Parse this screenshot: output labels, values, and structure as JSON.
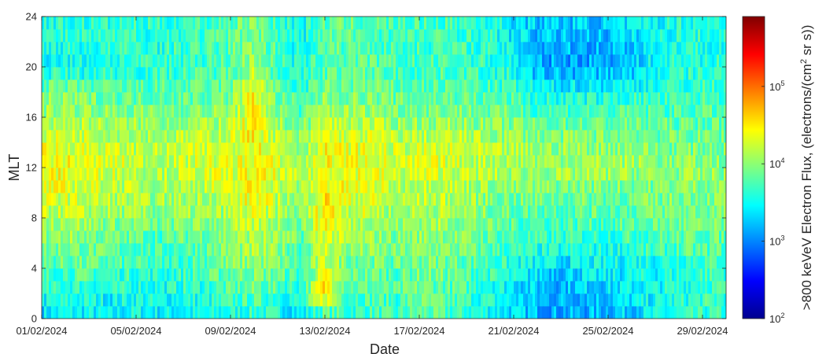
{
  "chart_data": {
    "type": "heatmap",
    "title": "",
    "xlabel": "Date",
    "ylabel": "MLT",
    "colorbar_label_prefix": ">800 keVeV Electron Flux, (electrons/(cm",
    "colorbar_label_sup": "2",
    "colorbar_label_suffix": " sr s))",
    "colorbar_label": ">800 keVeV Electron Flux, (electrons/(cm2 sr s))",
    "colormap": "jet",
    "color_scale": "log",
    "clim": [
      100,
      800000
    ],
    "x_range": [
      "01/02/2024",
      "01/03/2024"
    ],
    "ylim": [
      0,
      24
    ],
    "xticks": [
      "01/02/2024",
      "05/02/2024",
      "09/02/2024",
      "13/02/2024",
      "17/02/2024",
      "21/02/2024",
      "25/02/2024",
      "29/02/2024"
    ],
    "yticks": [
      "0",
      "4",
      "8",
      "12",
      "16",
      "20",
      "24"
    ],
    "cbar_ticks": [
      {
        "base": "10",
        "exp": "2",
        "value": 100
      },
      {
        "base": "10",
        "exp": "3",
        "value": 1000
      },
      {
        "base": "10",
        "exp": "4",
        "value": 10000
      },
      {
        "base": "10",
        "exp": "5",
        "value": 100000
      }
    ],
    "mlt_bins": 24,
    "log10_flux_by_mlt_hour": {
      "0": [
        3.3,
        3.4,
        3.4,
        3.3,
        3.5,
        3.4,
        3.4,
        3.4,
        3.5,
        3.6,
        3.5,
        3.3,
        3.5,
        3.6,
        3.7,
        3.6,
        3.8,
        3.7,
        3.6,
        3.5,
        3.3,
        3.2,
        3.1,
        3.1,
        3.2,
        3.3,
        3.4,
        3.5,
        3.6
      ],
      "2": [
        3.5,
        3.6,
        3.6,
        3.5,
        3.6,
        3.5,
        3.6,
        3.6,
        3.7,
        3.8,
        3.7,
        3.6,
        4.7,
        3.8,
        3.8,
        3.7,
        3.9,
        3.8,
        3.7,
        3.6,
        3.4,
        3.2,
        3.2,
        3.3,
        3.3,
        3.4,
        3.5,
        3.6,
        3.7
      ],
      "4": [
        3.7,
        3.8,
        3.8,
        3.7,
        3.7,
        3.6,
        3.7,
        3.8,
        3.9,
        4.0,
        3.9,
        3.7,
        4.2,
        3.9,
        3.9,
        3.8,
        3.9,
        3.9,
        3.8,
        3.7,
        3.5,
        3.4,
        3.3,
        3.4,
        3.4,
        3.5,
        3.5,
        3.6,
        3.7
      ],
      "6": [
        3.9,
        4.0,
        3.9,
        3.8,
        3.8,
        3.7,
        3.8,
        3.9,
        4.0,
        4.1,
        4.0,
        3.8,
        4.3,
        4.0,
        4.0,
        3.9,
        4.0,
        4.0,
        3.9,
        3.8,
        3.7,
        3.6,
        3.6,
        3.6,
        3.6,
        3.7,
        3.7,
        3.8,
        3.8
      ],
      "8": [
        4.1,
        4.2,
        4.1,
        4.0,
        4.0,
        3.9,
        4.0,
        4.0,
        4.1,
        4.2,
        4.1,
        3.9,
        4.6,
        4.2,
        4.2,
        4.0,
        4.1,
        4.1,
        4.0,
        3.9,
        3.8,
        3.8,
        3.8,
        3.8,
        3.8,
        3.8,
        3.9,
        3.9,
        3.9
      ],
      "10": [
        4.3,
        4.3,
        4.2,
        4.2,
        4.1,
        4.1,
        4.1,
        4.2,
        4.2,
        4.5,
        4.2,
        4.0,
        4.5,
        4.3,
        4.3,
        4.1,
        4.2,
        4.2,
        4.1,
        4.0,
        3.9,
        3.9,
        3.9,
        3.9,
        3.9,
        3.9,
        3.9,
        4.0,
        4.0
      ],
      "12": [
        4.4,
        4.4,
        4.3,
        4.3,
        4.2,
        4.2,
        4.2,
        4.3,
        4.3,
        4.4,
        4.3,
        4.1,
        4.4,
        4.4,
        4.4,
        4.2,
        4.3,
        4.3,
        4.2,
        4.2,
        4.1,
        4.1,
        4.1,
        4.1,
        4.1,
        4.1,
        4.0,
        4.0,
        4.0
      ],
      "14": [
        4.3,
        4.3,
        4.3,
        4.2,
        4.2,
        4.1,
        4.2,
        4.2,
        4.3,
        4.5,
        4.2,
        4.0,
        4.4,
        4.3,
        4.3,
        4.2,
        4.2,
        4.2,
        4.2,
        4.1,
        4.1,
        4.0,
        4.0,
        4.0,
        4.0,
        4.0,
        3.9,
        3.9,
        3.9
      ],
      "16": [
        4.1,
        4.1,
        4.1,
        4.0,
        4.0,
        4.0,
        4.0,
        4.0,
        4.1,
        4.4,
        4.0,
        3.8,
        4.2,
        4.1,
        4.1,
        4.0,
        4.0,
        4.0,
        4.0,
        3.9,
        3.9,
        3.8,
        3.8,
        3.8,
        3.8,
        3.8,
        3.8,
        3.8,
        3.8
      ],
      "18": [
        3.9,
        3.9,
        3.9,
        3.8,
        3.8,
        3.8,
        3.8,
        3.8,
        3.9,
        4.5,
        3.8,
        3.6,
        3.9,
        3.9,
        3.9,
        3.8,
        3.8,
        3.8,
        3.8,
        3.7,
        3.7,
        3.5,
        3.5,
        3.5,
        3.5,
        3.6,
        3.6,
        3.6,
        3.7
      ],
      "20": [
        3.5,
        3.5,
        3.5,
        3.6,
        3.6,
        3.6,
        3.7,
        3.7,
        3.8,
        4.1,
        3.7,
        3.5,
        3.8,
        3.8,
        3.8,
        3.7,
        3.7,
        3.7,
        3.7,
        3.6,
        3.5,
        3.1,
        3.1,
        3.1,
        3.2,
        3.2,
        3.5,
        3.6,
        3.6
      ],
      "22": [
        3.6,
        3.6,
        3.6,
        3.6,
        3.7,
        3.6,
        3.7,
        3.7,
        3.8,
        4.0,
        3.7,
        3.5,
        3.8,
        3.8,
        3.8,
        3.7,
        3.7,
        3.7,
        3.7,
        3.6,
        3.4,
        3.2,
        3.2,
        3.2,
        3.2,
        3.3,
        3.5,
        3.6,
        3.6
      ],
      "24": [
        3.6,
        3.6,
        3.6,
        3.6,
        3.6,
        3.6,
        3.7,
        3.7,
        3.8,
        4.0,
        3.7,
        3.5,
        3.8,
        3.8,
        3.8,
        3.7,
        3.7,
        3.7,
        3.7,
        3.6,
        3.4,
        3.3,
        3.3,
        3.3,
        3.3,
        3.4,
        3.5,
        3.6,
        3.6
      ]
    },
    "grid": false,
    "legend": "none"
  }
}
